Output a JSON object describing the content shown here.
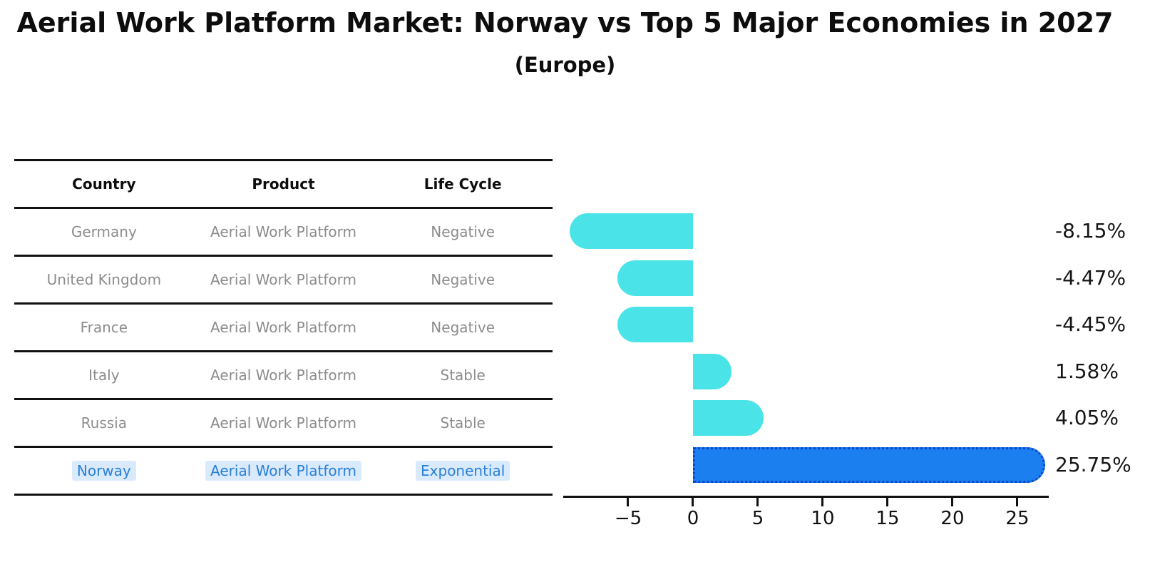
{
  "title": "Aerial Work Platform Market: Norway vs Top 5 Major Economies in 2027",
  "subtitle": "(Europe)",
  "table": {
    "headers": [
      "Country",
      "Product",
      "Life Cycle"
    ],
    "rows": [
      {
        "country": "Germany",
        "product": "Aerial Work Platform",
        "life_cycle": "Negative",
        "highlight": false
      },
      {
        "country": "United Kingdom",
        "product": "Aerial Work Platform",
        "life_cycle": "Negative",
        "highlight": false
      },
      {
        "country": "France",
        "product": "Aerial Work Platform",
        "life_cycle": "Negative",
        "highlight": false
      },
      {
        "country": "Italy",
        "product": "Aerial Work Platform",
        "life_cycle": "Stable",
        "highlight": false
      },
      {
        "country": "Russia",
        "product": "Aerial Work Platform",
        "life_cycle": "Stable",
        "highlight": false
      },
      {
        "country": "Norway",
        "product": "Aerial Work Platform",
        "life_cycle": "Exponential",
        "highlight": true
      }
    ]
  },
  "chart_data": {
    "type": "bar",
    "orientation": "horizontal",
    "categories": [
      "Germany",
      "United Kingdom",
      "France",
      "Italy",
      "Russia",
      "Norway"
    ],
    "values": [
      -8.15,
      -4.47,
      -4.45,
      1.58,
      4.05,
      25.75
    ],
    "value_labels": [
      "-8.15%",
      "-4.47%",
      "-4.45%",
      "1.58%",
      "4.05%",
      "25.75%"
    ],
    "x_ticks": [
      -5,
      0,
      5,
      10,
      15,
      20,
      25
    ],
    "x_tick_labels": [
      "−5",
      "0",
      "5",
      "10",
      "15",
      "20",
      "25"
    ],
    "xlim": [
      -10.0,
      27.42
    ],
    "grid": false,
    "legend": false,
    "highlight_index": 5,
    "bar_color": "#4ae4e8",
    "highlight_color": "#1b7ff0",
    "highlight_border": "#0a46cc",
    "highlight_border_style": "dotted"
  },
  "colors": {
    "background": "#ffffff",
    "ink": "#0d0d0d",
    "line": "#111111",
    "gray_text": "#8c8c8c",
    "blue_text": "#2a80d8",
    "highlight_bg": "#d9eafc"
  }
}
